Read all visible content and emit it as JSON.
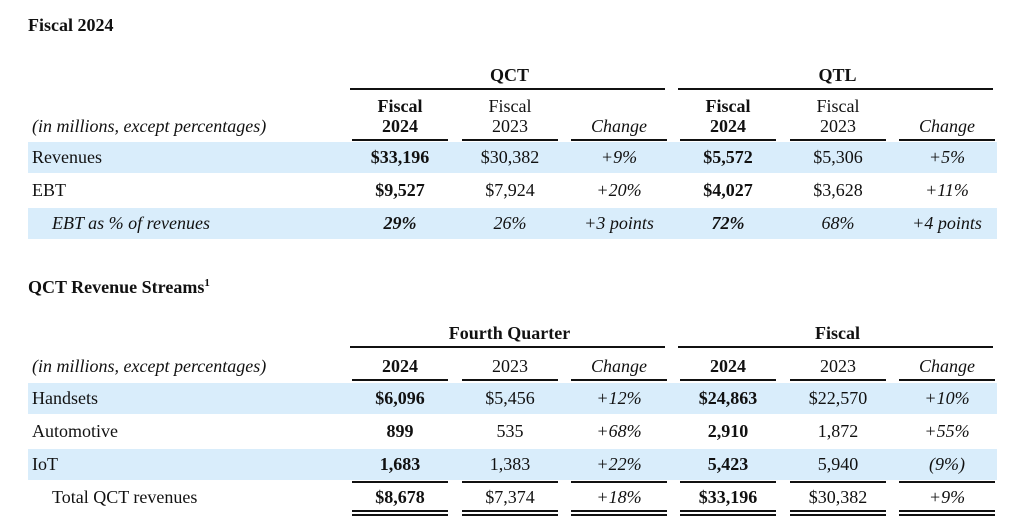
{
  "section1": {
    "title": "Fiscal 2024",
    "groups": [
      "QCT",
      "QTL"
    ],
    "unit_label": "(in millions, except percentages)",
    "columns": [
      [
        "Fiscal",
        "2024"
      ],
      [
        "Fiscal",
        "2023"
      ],
      [
        "Change"
      ],
      [
        "Fiscal",
        "2024"
      ],
      [
        "Fiscal",
        "2023"
      ],
      [
        "Change"
      ]
    ],
    "rows": [
      {
        "label": "Revenues",
        "cells": [
          "$33,196",
          "$30,382",
          "+9%",
          "$5,572",
          "$5,306",
          "+5%"
        ]
      },
      {
        "label": "EBT",
        "cells": [
          "$9,527",
          "$7,924",
          "+20%",
          "$4,027",
          "$3,628",
          "+11%"
        ]
      },
      {
        "label": "EBT as % of revenues",
        "cells": [
          "29%",
          "26%",
          "+3 points",
          "72%",
          "68%",
          "+4 points"
        ]
      }
    ]
  },
  "section2": {
    "title": "QCT Revenue Streams",
    "footnote": "1",
    "groups": [
      "Fourth Quarter",
      "Fiscal"
    ],
    "unit_label": "(in millions, except percentages)",
    "columns": [
      [
        "2024"
      ],
      [
        "2023"
      ],
      [
        "Change"
      ],
      [
        "2024"
      ],
      [
        "2023"
      ],
      [
        "Change"
      ]
    ],
    "rows": [
      {
        "label": "Handsets",
        "cells": [
          "$6,096",
          "$5,456",
          "+12%",
          "$24,863",
          "$22,570",
          "+10%"
        ]
      },
      {
        "label": "Automotive",
        "cells": [
          "899",
          "535",
          "+68%",
          "2,910",
          "1,872",
          "+55%"
        ]
      },
      {
        "label": "IoT",
        "cells": [
          "1,683",
          "1,383",
          "+22%",
          "5,423",
          "5,940",
          "(9%)"
        ]
      },
      {
        "label": "Total QCT revenues",
        "cells": [
          "$8,678",
          "$7,374",
          "+18%",
          "$33,196",
          "$30,382",
          "+9%"
        ]
      }
    ]
  }
}
